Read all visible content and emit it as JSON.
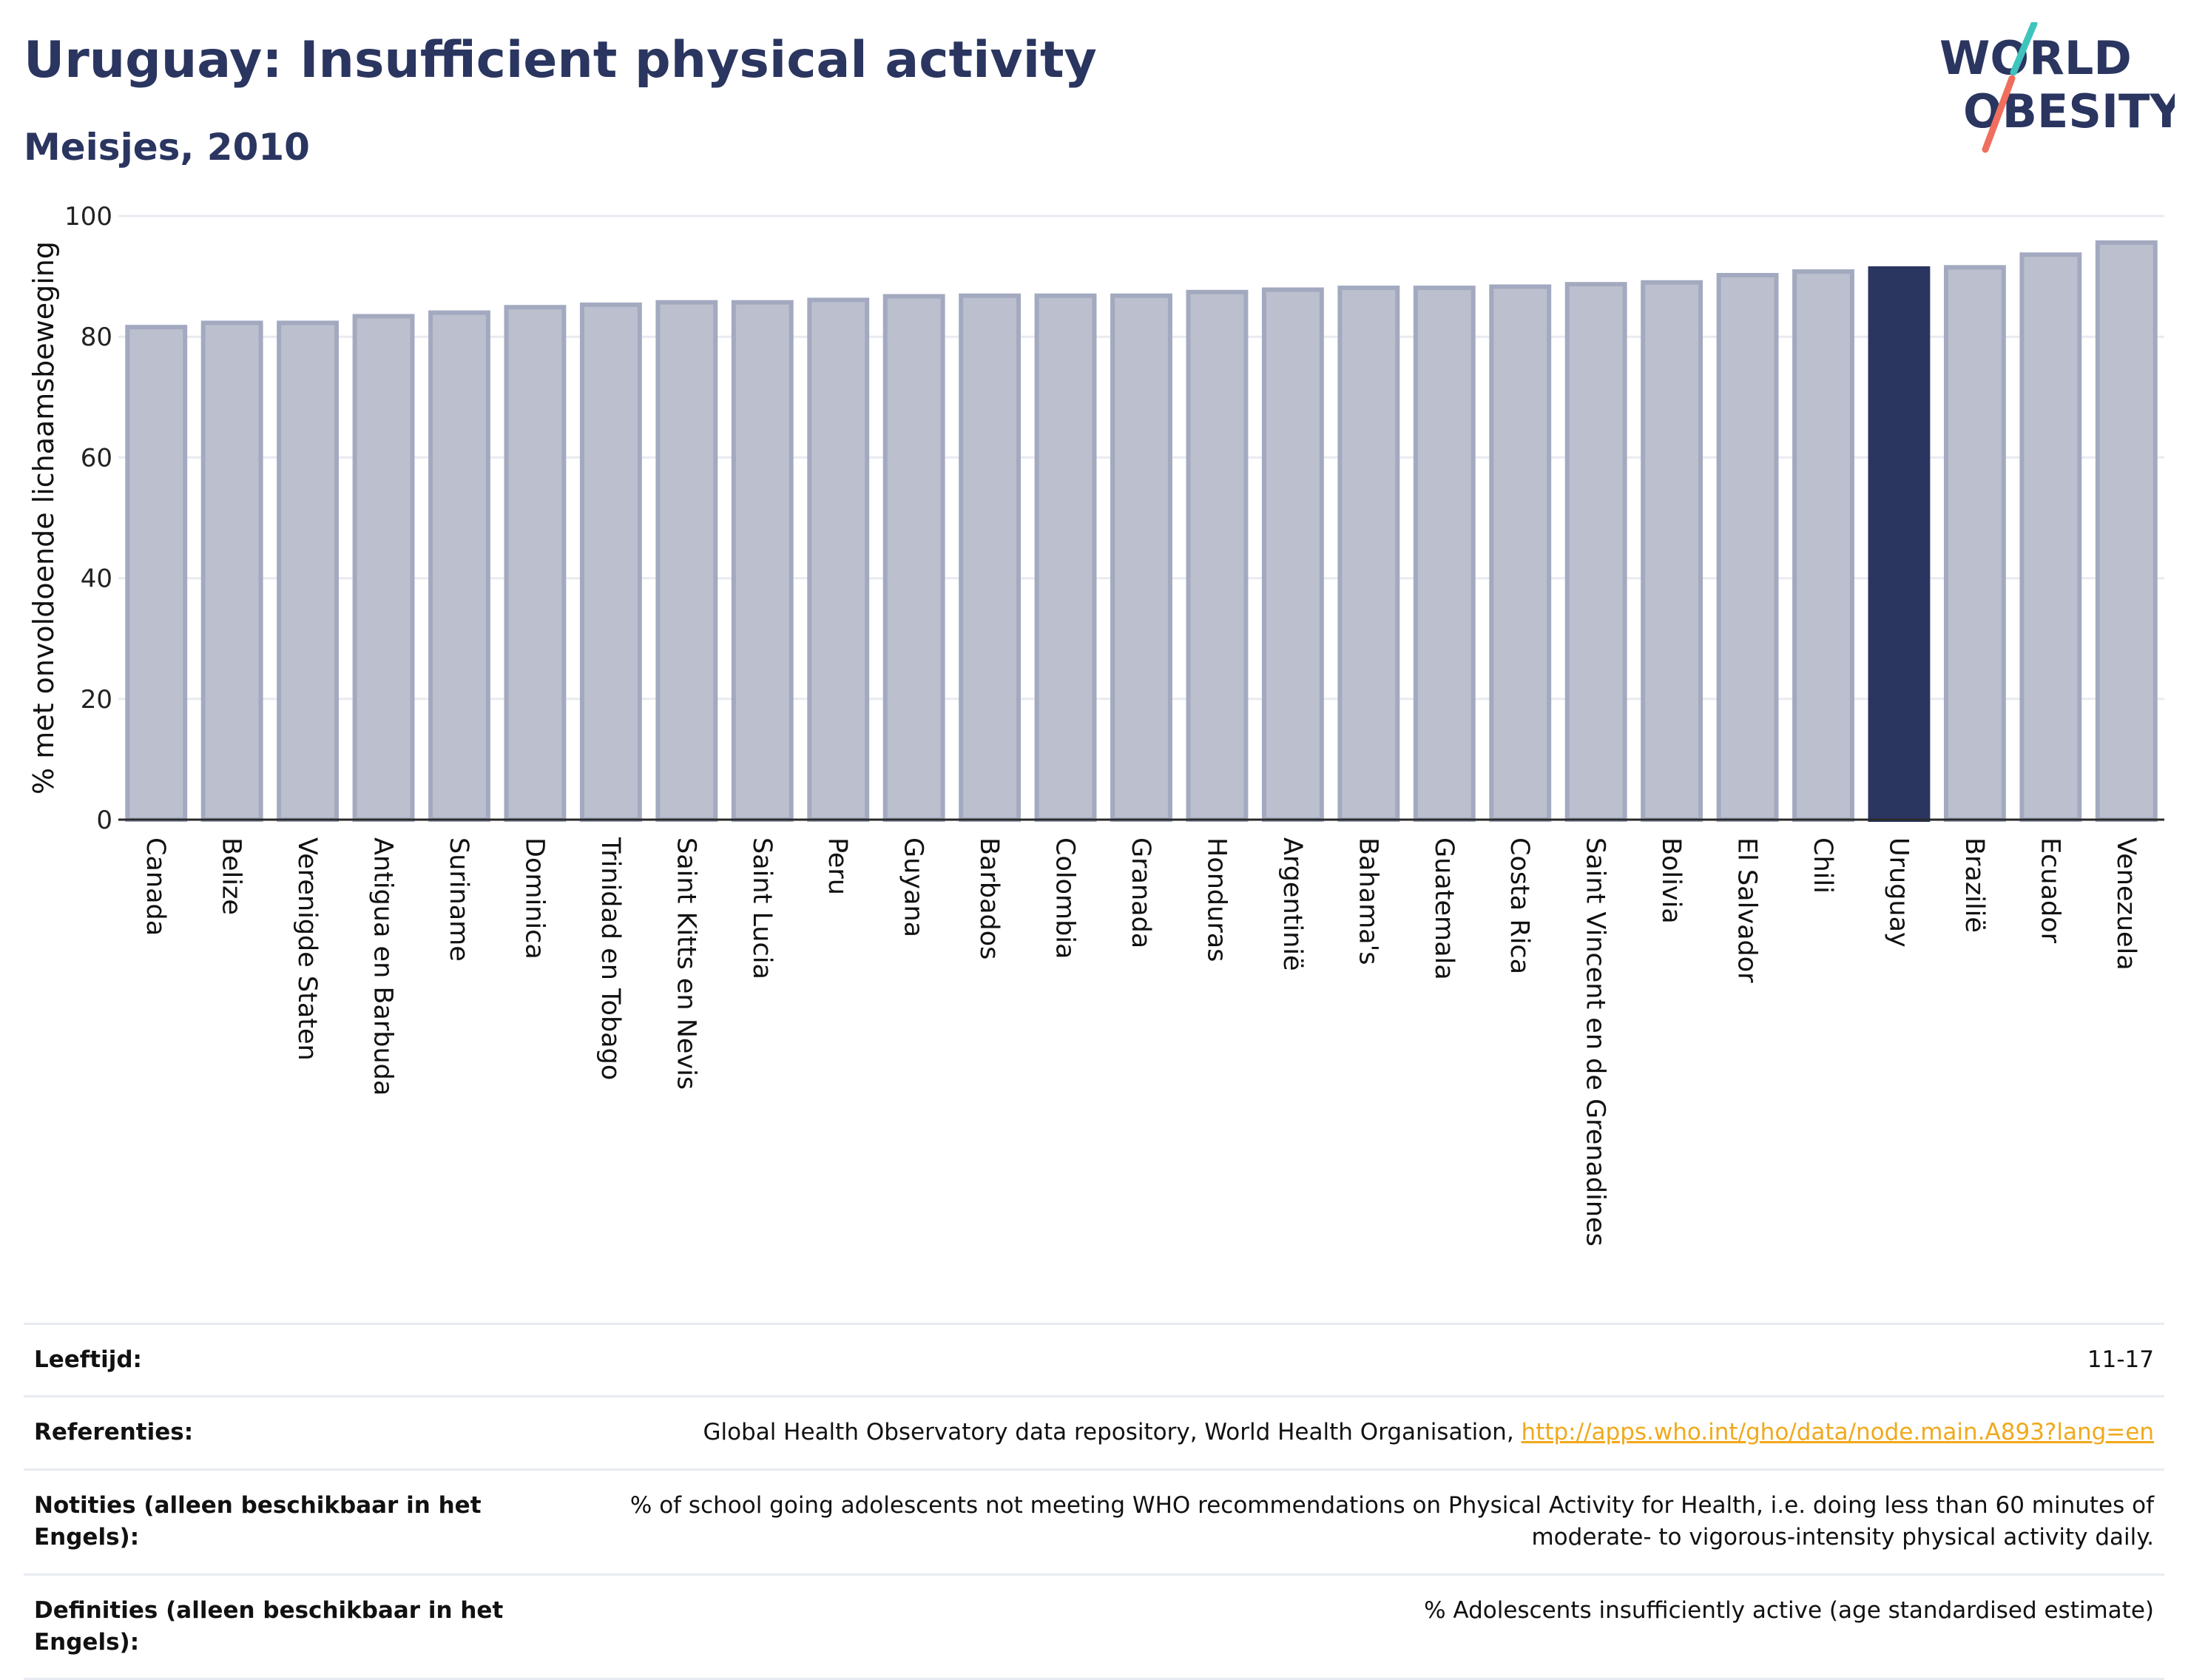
{
  "header": {
    "title": "Uruguay: Insufficient physical activity",
    "subtitle": "Meisjes, 2010"
  },
  "logo": {
    "line1": "WORLD",
    "line2": "OBESITY",
    "accent_teal": "#3ec4bd",
    "accent_coral": "#ef6e5e"
  },
  "colors": {
    "bar": "#bcc0ce",
    "bar_border": "#a3a9bf",
    "highlight": "#2a3560",
    "grid": "#e9ebf2",
    "axis": "#2a2a2a"
  },
  "chart_data": {
    "type": "bar",
    "title": "Uruguay: Insufficient physical activity",
    "subtitle": "Meisjes, 2010",
    "ylabel": "% met onvoldoende lichaamsbeweging",
    "xlabel": "",
    "ylim": [
      0,
      100
    ],
    "yticks": [
      0,
      20,
      40,
      60,
      80,
      100
    ],
    "grid": true,
    "highlight": "Uruguay",
    "categories": [
      "Canada",
      "Belize",
      "Verenigde Staten",
      "Antigua en Barbuda",
      "Suriname",
      "Dominica",
      "Trinidad en Tobago",
      "Saint Kitts en Nevis",
      "Saint Lucia",
      "Peru",
      "Guyana",
      "Barbados",
      "Colombia",
      "Granada",
      "Honduras",
      "Argentinië",
      "Bahama's",
      "Guatemala",
      "Costa Rica",
      "Saint Vincent en de Grenadines",
      "Bolivia",
      "El Salvador",
      "Chili",
      "Uruguay",
      "Brazilië",
      "Ecuador",
      "Venezuela"
    ],
    "values": [
      81.6,
      82.3,
      82.3,
      83.4,
      84.0,
      84.9,
      85.3,
      85.7,
      85.7,
      86.1,
      86.7,
      86.8,
      86.8,
      86.8,
      87.4,
      87.8,
      88.1,
      88.1,
      88.3,
      88.7,
      89.0,
      90.2,
      90.8,
      91.3,
      91.5,
      93.6,
      95.6
    ]
  },
  "info": [
    {
      "label": "Leeftijd:",
      "value": "11-17"
    },
    {
      "label": "Referenties:",
      "value": "Global Health Observatory data repository, World Health Organisation, ",
      "link": "http://apps.who.int/gho/data/node.main.A893?lang=en"
    },
    {
      "label": "Notities (alleen beschikbaar in het Engels):",
      "value": "% of school going adolescents not meeting WHO recommendations on Physical Activity for Health, i.e. doing less than 60 minutes of moderate- to vigorous-intensity physical activity daily."
    },
    {
      "label": "Definities (alleen beschikbaar in het Engels):",
      "value": "% Adolescents insufficiently active (age standardised estimate)"
    }
  ]
}
